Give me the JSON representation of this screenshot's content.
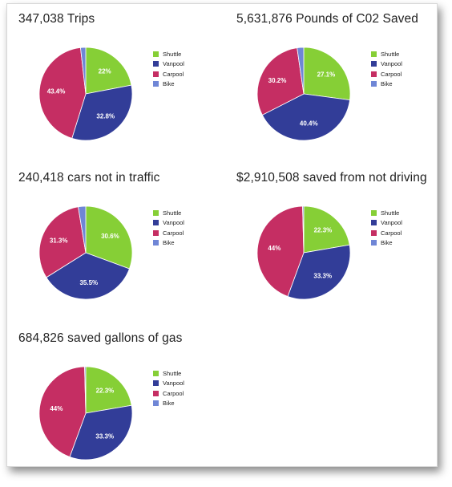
{
  "chart_data": [
    {
      "type": "pie",
      "title": "347,038 Trips",
      "categories": [
        "Shuttle",
        "Vanpool",
        "Carpool",
        "Bike"
      ],
      "values": [
        22.0,
        32.8,
        43.4,
        1.8
      ],
      "labels": [
        "22%",
        "32.8%",
        "43.4%",
        ""
      ]
    },
    {
      "type": "pie",
      "title": "5,631,876 Pounds of C02 Saved",
      "categories": [
        "Shuttle",
        "Vanpool",
        "Carpool",
        "Bike"
      ],
      "values": [
        27.1,
        40.4,
        30.2,
        2.3
      ],
      "labels": [
        "27.1%",
        "40.4%",
        "30.2%",
        ""
      ]
    },
    {
      "type": "pie",
      "title": "240,418 cars not in traffic",
      "categories": [
        "Shuttle",
        "Vanpool",
        "Carpool",
        "Bike"
      ],
      "values": [
        30.6,
        35.5,
        31.3,
        2.6
      ],
      "labels": [
        "30.6%",
        "35.5%",
        "31.3%",
        ""
      ]
    },
    {
      "type": "pie",
      "title": "$2,910,508 saved from not driving",
      "categories": [
        "Shuttle",
        "Vanpool",
        "Carpool",
        "Bike"
      ],
      "values": [
        22.3,
        33.3,
        44.0,
        0.4
      ],
      "labels": [
        "22.3%",
        "33.3%",
        "44%",
        ""
      ]
    },
    {
      "type": "pie",
      "title": "684,826 saved gallons of gas",
      "categories": [
        "Shuttle",
        "Vanpool",
        "Carpool",
        "Bike"
      ],
      "values": [
        22.3,
        33.3,
        44.0,
        0.4
      ],
      "labels": [
        "22.3%",
        "33.3%",
        "44%",
        ""
      ]
    }
  ],
  "colors": {
    "Shuttle": "#86cf36",
    "Vanpool": "#323d98",
    "Carpool": "#c52e63",
    "Bike": "#6f86d6"
  },
  "legend_position": "right"
}
